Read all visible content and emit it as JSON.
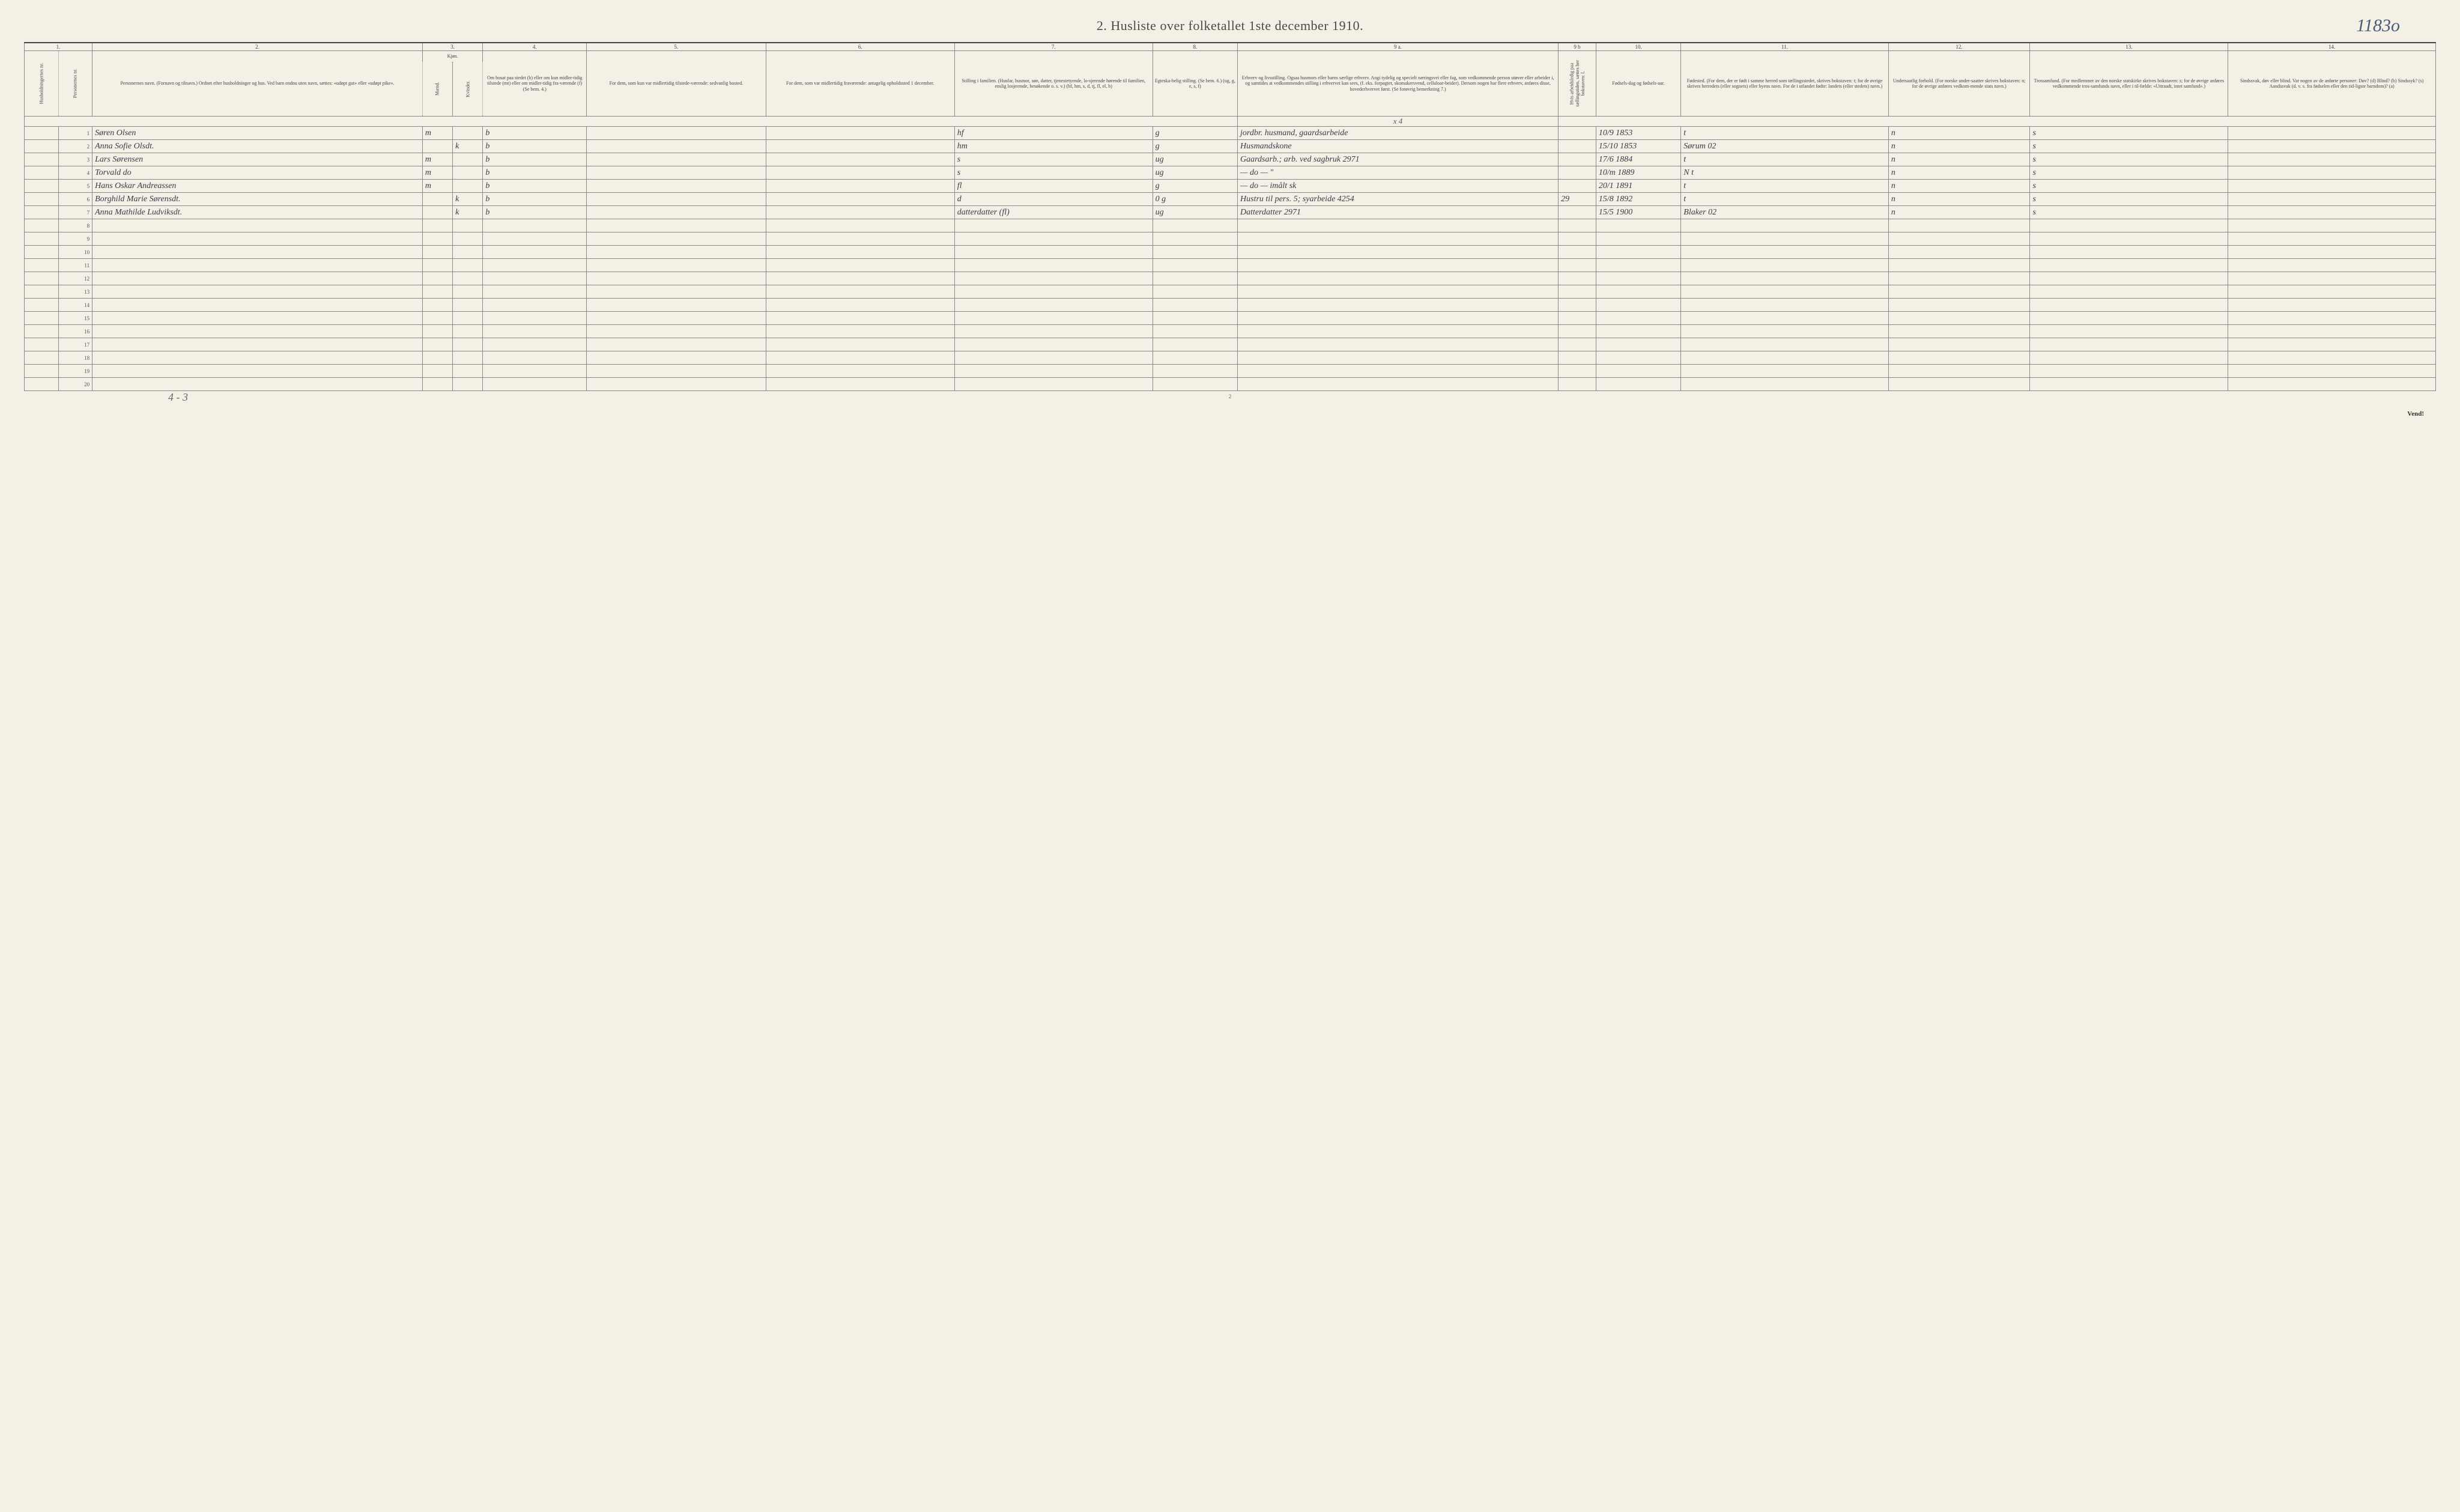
{
  "title": "2.  Husliste over folketallet 1ste december 1910.",
  "handwritten_topright": "1183o",
  "table": {
    "topnums": [
      "1.",
      "2.",
      "3.",
      "4.",
      "5.",
      "6.",
      "7.",
      "8.",
      "9 a.",
      "9 b",
      "10.",
      "11.",
      "12.",
      "13.",
      "14."
    ],
    "headers": {
      "c1a": "Husholdningernes nr.",
      "c1b": "Personernes nr.",
      "c2": "Personernes navn.\n(Fornavn og tilnavn.)\nOrdnet efter husholdninger og hus.\nVed barn endnu uten navn, sættes: «udøpt gut» eller «udøpt pike».",
      "c3": "Kjøn.",
      "c3m": "Mænd.",
      "c3k": "Kvinder.",
      "c3mk": "m.  k.",
      "c4": "Om bosat paa stedet (b) eller om kun midler-tidig tilstede (mt) eller om midler-tidig fra-værende (f) (Se bem. 4.)",
      "c5": "For dem, som kun var midlertidig tilstede-værende:\nsedvanlig bosted.",
      "c6": "For dem, som var midlertidig fraværende:\nantagelig opholdssted 1 december.",
      "c7": "Stilling i familien.\n(Husfar, husmor, søn, datter, tjenestetyende, lo-sjerende hørende til familien, enslig losjerende, besøkende o. s. v.)\n(hf, hm, s, d, tj, fl, el, b)",
      "c8": "Egteska-belig stilling.\n(Se bem. 6.)\n(ug, g, e, s, f)",
      "c9a": "Erhverv og livsstilling.\nOgsaa husmors eller barns særlige erhverv.\nAngi tydelig og specielt næringsvei eller fag, som vedkommende person utøver eller arbeider i, og samtides at vedkommendes stilling i erhvervet kan sees, (f. eks. forpagter, skomakersvend, celluloar-beider). Dersom nogen har flere erhverv, anføres disse, hovederhvervet først.\n(Se forøvrig bemerkning 7.)",
      "c9b": "Hvis arbeidsledig paa tællingstiden, sættes her bokstaven: l.",
      "c10": "Fødsels-dag og fødsels-aar.",
      "c11": "Fødested.\n(For dem, der er født i samme herred som tællingsstedet, skrives bokstaven: t; for de øvrige skrives herredets (eller sognets) eller byens navn. For de i utlandet fødte: landets (eller stedets) navn.)",
      "c12": "Undersaatlig forhold.\n(For norske under-saatter skrives bokstaven: n; for de øvrige anføres vedkom-mende stats navn.)",
      "c13": "Trossamfund.\n(For medlemmer av den norske statskirke skrives bokstaven: s; for de øvrige anføres vedkommende tros-samfunds navn, eller i til-fælde: «Uttraadt, intet samfund».)",
      "c14": "Sindssvak, døv eller blind.\nVar nogen av de anførte personer:\nDøv?        (d)\nBlind?      (b)\nSindssyk?  (s)\nAandssvak (d. v. s. fra fødselen eller den tid-ligste barndom)? (a)"
    },
    "annot9a": "x 4",
    "rows": [
      {
        "n": "1",
        "name": "Søren Olsen",
        "m": "m",
        "k": "",
        "bos": "b",
        "c5": "",
        "c6": "",
        "fam": "hf",
        "eg": "g",
        "erhv": "jordbr. husmand, gaardsarbeide",
        "c9b": "",
        "fod": "10/9 1853",
        "fsted": "t",
        "und": "n",
        "tro": "s",
        "c14": ""
      },
      {
        "n": "2",
        "name": "Anna Sofie Olsdt.",
        "m": "",
        "k": "k",
        "bos": "b",
        "c5": "",
        "c6": "",
        "fam": "hm",
        "eg": "g",
        "erhv": "Husmandskone",
        "c9b": "",
        "fod": "15/10 1853",
        "fsted": "Sørum 02",
        "und": "n",
        "tro": "s",
        "c14": ""
      },
      {
        "n": "3",
        "name": "Lars Sørensen",
        "m": "m",
        "k": "",
        "bos": "b",
        "c5": "",
        "c6": "",
        "fam": "s",
        "eg": "ug",
        "erhv": "Gaardsarb.; arb. ved sagbruk   2971",
        "c9b": "",
        "fod": "17/6 1884",
        "fsted": "t",
        "und": "n",
        "tro": "s",
        "c14": ""
      },
      {
        "n": "4",
        "name": "Torvald    do",
        "m": "m",
        "k": "",
        "bos": "b",
        "c5": "",
        "c6": "",
        "fam": "s",
        "eg": "ug",
        "erhv": "—      do   —        \"",
        "c9b": "",
        "fod": "10/m 1889",
        "fsted": "N   t",
        "und": "n",
        "tro": "s",
        "c14": ""
      },
      {
        "n": "5",
        "name": "Hans Oskar Andreassen",
        "m": "m",
        "k": "",
        "bos": "b",
        "c5": "",
        "c6": "",
        "fam": "fl",
        "eg": "g",
        "erhv": "—     do   —       imålt sk",
        "c9b": "",
        "fod": "20/1 1891",
        "fsted": "t",
        "und": "n",
        "tro": "s",
        "c14": ""
      },
      {
        "n": "6",
        "name": "Borghild Marie Sørensdt.",
        "m": "",
        "k": "k",
        "bos": "b",
        "c5": "",
        "c6": "",
        "fam": "d",
        "eg": "0 g",
        "erhv": "Hustru til pers. 5; syarbeide 4254",
        "c9b": "29",
        "fod": "15/8 1892",
        "fsted": "t",
        "und": "n",
        "tro": "s",
        "c14": ""
      },
      {
        "n": "7",
        "name": "Anna Mathilde Ludviksdt.",
        "m": "",
        "k": "k",
        "bos": "b",
        "c5": "",
        "c6": "",
        "fam": "datterdatter (fl)",
        "eg": "ug",
        "erhv": "Datterdatter       2971",
        "c9b": "",
        "fod": "15/5 1900",
        "fsted": "Blaker 02",
        "und": "n",
        "tro": "s",
        "c14": ""
      }
    ],
    "emptyrows": [
      "8",
      "9",
      "10",
      "11",
      "12",
      "13",
      "14",
      "15",
      "16",
      "17",
      "18",
      "19",
      "20"
    ]
  },
  "bottom_note": "4 - 3",
  "pagenum": "2",
  "vend": "Vend!",
  "colwidths": {
    "c1a": 18,
    "c1b": 18,
    "c2": 175,
    "c3m": 16,
    "c3k": 16,
    "c4": 55,
    "c5": 95,
    "c6": 100,
    "c7": 105,
    "c8": 45,
    "c9a": 170,
    "c9b": 20,
    "c10": 45,
    "c11": 110,
    "c12": 75,
    "c13": 105,
    "c14": 110
  },
  "colors": {
    "paper": "#f4f0e6",
    "rule": "#888",
    "rule_heavy": "#444",
    "print": "#4a4a4a",
    "ink": "#3a3a4a",
    "pencil": "#666"
  }
}
